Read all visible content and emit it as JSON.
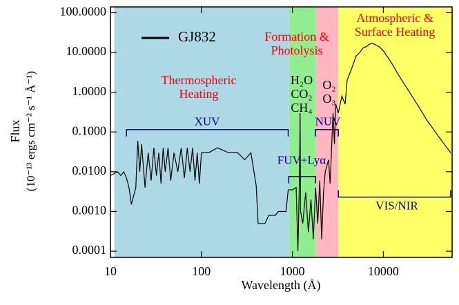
{
  "chart_data": {
    "type": "line",
    "xlabel": "Wavelength (Å)",
    "ylabel": [
      "Flux",
      "(10⁻¹³ ergs cm⁻² s⁻¹ Å⁻¹)"
    ],
    "xscale": "log",
    "yscale": "log",
    "xlim": [
      10,
      57000
    ],
    "ylim": [
      7e-05,
      140
    ],
    "xticks": [
      10,
      100,
      1000,
      10000
    ],
    "yticks": [
      {
        "value": 100,
        "label": "100.0000"
      },
      {
        "value": 10,
        "label": "10.0000"
      },
      {
        "value": 1,
        "label": "1.0000"
      },
      {
        "value": 0.1,
        "label": "0.1000"
      },
      {
        "value": 0.01,
        "label": "0.0100"
      },
      {
        "value": 0.001,
        "label": "0.0010"
      },
      {
        "value": 0.0001,
        "label": "0.0001"
      }
    ],
    "legend": "upper left",
    "regions": [
      {
        "from": 11,
        "to": 920,
        "color": "#add8e6"
      },
      {
        "from": 920,
        "to": 1800,
        "color": "#90ee90"
      },
      {
        "from": 1800,
        "to": 3200,
        "color": "#ffb6c1"
      },
      {
        "from": 3200,
        "to": 57000,
        "color": "#ffff66"
      }
    ],
    "annotations": [
      {
        "lines": [
          "Thermospheric",
          "Heating"
        ],
        "color": "#ff0000"
      },
      {
        "lines": [
          "Formation &",
          "Photolysis"
        ],
        "color": "#ff0000"
      },
      {
        "lines": [
          "Atmospheric &",
          "Surface Heating"
        ],
        "color": "#ff0000"
      },
      {
        "lines": [
          "H₂O",
          "CO₂",
          "CH₄"
        ],
        "color": "#000000"
      },
      {
        "lines": [
          "O₂",
          "O₃"
        ],
        "color": "#000000"
      }
    ],
    "bands": [
      {
        "label": "XUV",
        "from": 15,
        "to": 900,
        "level": 0.115,
        "open": "down",
        "color": "#00008b"
      },
      {
        "label": "FUV+Lyα",
        "from": 912,
        "to": 1800,
        "level": 0.0076,
        "open": "down",
        "color": "#00008b"
      },
      {
        "label": "NUV",
        "from": 1800,
        "to": 3200,
        "level": 0.115,
        "open": "down",
        "color": "#00008b"
      },
      {
        "label": "VIS/NIR",
        "from": 3200,
        "to": 55000,
        "level": 0.0023,
        "open": "up",
        "color": "#00008b"
      }
    ],
    "series": [
      {
        "name": "GJ832",
        "color": "#000000",
        "x": [
          10,
          11,
          12,
          13,
          14,
          15,
          16,
          17,
          19,
          20,
          21,
          22,
          24,
          26,
          28,
          30,
          32,
          34,
          36,
          38,
          40,
          43,
          46,
          50,
          55,
          60,
          65,
          70,
          75,
          80,
          85,
          90,
          95,
          100,
          120,
          150,
          200,
          250,
          300,
          350,
          400,
          420,
          500,
          550,
          650,
          700,
          850,
          900,
          1000,
          1100,
          1150,
          1200,
          1216,
          1230,
          1300,
          1400,
          1500,
          1600,
          1700,
          1800,
          1900,
          2000,
          2100,
          2200,
          2300,
          2500,
          2600,
          2800,
          2900,
          3000,
          3200,
          3500,
          3800,
          4000,
          4500,
          5000,
          5500,
          6000,
          6500,
          7000,
          7500,
          8000,
          9000,
          10000,
          12000,
          15000,
          20000,
          25000,
          30000,
          40000,
          50000,
          55000
        ],
        "values": [
          0.008,
          0.009,
          0.01,
          0.008,
          0.01,
          0.007,
          0.004,
          0.0015,
          0.004,
          0.06,
          0.01,
          0.05,
          0.004,
          0.03,
          0.006,
          0.04,
          0.008,
          0.03,
          0.005,
          0.04,
          0.01,
          0.04,
          0.006,
          0.03,
          0.01,
          0.04,
          0.007,
          0.04,
          0.01,
          0.04,
          0.006,
          0.03,
          0.005,
          0.03,
          0.03,
          0.04,
          0.03,
          0.03,
          0.02,
          0.03,
          0.0045,
          0.0005,
          0.0005,
          0.0008,
          0.0008,
          0.001,
          0.001,
          0.0035,
          0.0035,
          0.004,
          0.0001,
          0.01,
          0.3,
          0.001,
          0.0005,
          0.003,
          0.0003,
          0.002,
          0.0002,
          0.004,
          0.0005,
          0.006,
          0.0002,
          0.003,
          0.01,
          0.02,
          0.005,
          0.3,
          0.05,
          0.5,
          0.3,
          0.8,
          0.5,
          2,
          4,
          8,
          10,
          13,
          14,
          16,
          17,
          16,
          14,
          11,
          6,
          2.5,
          0.9,
          0.4,
          0.2,
          0.08,
          0.04,
          0.03
        ]
      }
    ]
  }
}
